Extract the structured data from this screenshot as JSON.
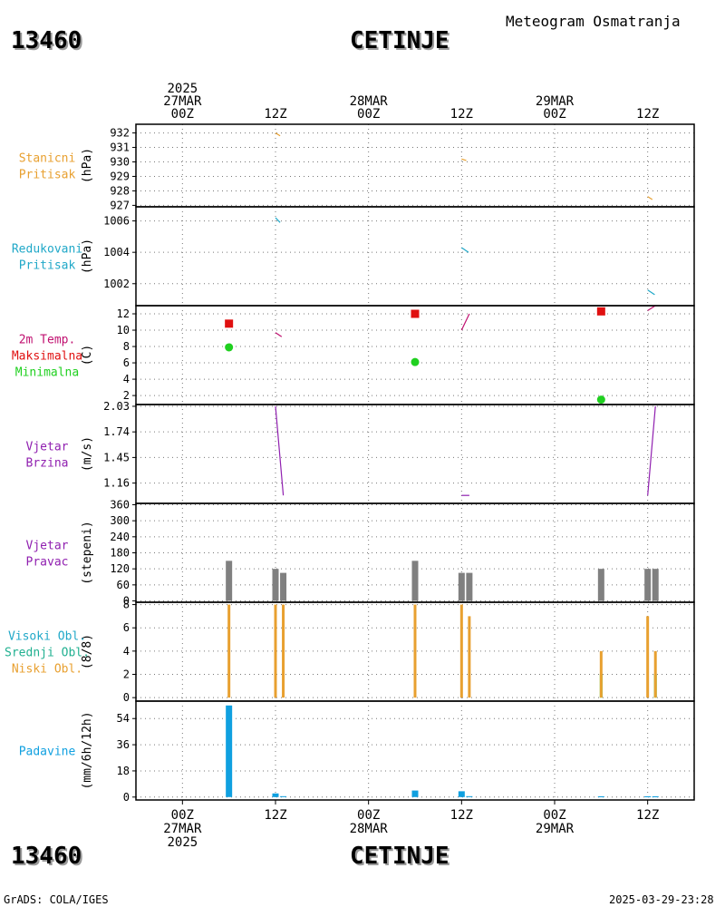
{
  "header": {
    "station_id": "13460",
    "station_name": "CETINJE",
    "title": "Meteogram Osmatranja"
  },
  "footer": {
    "station_id": "13460",
    "station_name": "CETINJE",
    "credit": "GrADS: COLA/IGES",
    "timestamp": "2025-03-29-23:28"
  },
  "colors": {
    "orange": "#e8a030",
    "cyan": "#20a8c8",
    "red": "#e01010",
    "green": "#20d020",
    "magenta": "#c01070",
    "purple": "#9020b0",
    "gray": "#808080",
    "blue": "#10a0e0"
  },
  "chart_data": {
    "type": "meteogram",
    "time_axis": {
      "hour_range": [
        -6,
        66
      ],
      "top_labels": [
        {
          "hour": 0,
          "lines": [
            "2025",
            "27MAR",
            "00Z"
          ]
        },
        {
          "hour": 12,
          "lines": [
            "12Z"
          ]
        },
        {
          "hour": 24,
          "lines": [
            "28MAR",
            "00Z"
          ]
        },
        {
          "hour": 36,
          "lines": [
            "12Z"
          ]
        },
        {
          "hour": 48,
          "lines": [
            "29MAR",
            "00Z"
          ]
        },
        {
          "hour": 60,
          "lines": [
            "12Z"
          ]
        }
      ],
      "bottom_labels": [
        {
          "hour": 0,
          "lines": [
            "00Z",
            "27MAR",
            "2025"
          ]
        },
        {
          "hour": 12,
          "lines": [
            "12Z"
          ]
        },
        {
          "hour": 24,
          "lines": [
            "00Z",
            "28MAR"
          ]
        },
        {
          "hour": 36,
          "lines": [
            "12Z"
          ]
        },
        {
          "hour": 48,
          "lines": [
            "00Z",
            "29MAR"
          ]
        },
        {
          "hour": 60,
          "lines": [
            "12Z"
          ]
        }
      ]
    },
    "panels": [
      {
        "id": "stanicni",
        "labels": [
          {
            "text": "Stanicni",
            "color": "#e8a030"
          },
          {
            "text": "Pritisak",
            "color": "#e8a030"
          }
        ],
        "unit": "(hPa)",
        "ylim": [
          926.9,
          932.6
        ],
        "ticks": [
          932,
          931,
          930,
          929,
          928,
          927
        ],
        "lines": [
          {
            "color": "#e8a030",
            "points": [
              [
                12,
                932.0
              ],
              [
                12.6,
                931.8
              ]
            ]
          },
          {
            "color": "#e8a030",
            "points": [
              [
                36,
                930.2
              ],
              [
                36.6,
                930.1
              ]
            ]
          },
          {
            "color": "#e8a030",
            "points": [
              [
                60,
                927.6
              ],
              [
                60.6,
                927.4
              ]
            ]
          }
        ]
      },
      {
        "id": "redukovani",
        "labels": [
          {
            "text": "Redukovani",
            "color": "#20a8c8"
          },
          {
            "text": "Pritisak",
            "color": "#20a8c8"
          }
        ],
        "unit": "(hPa)",
        "ylim": [
          1000.6,
          1006.9
        ],
        "ticks": [
          1006,
          1004,
          1002
        ],
        "lines": [
          {
            "color": "#20a8c8",
            "points": [
              [
                12,
                1006.2
              ],
              [
                12.6,
                1005.9
              ]
            ]
          },
          {
            "color": "#20a8c8",
            "points": [
              [
                36,
                1004.3
              ],
              [
                36.9,
                1004.0
              ]
            ]
          },
          {
            "color": "#20a8c8",
            "points": [
              [
                60,
                1001.6
              ],
              [
                60.9,
                1001.3
              ]
            ]
          }
        ]
      },
      {
        "id": "temperatura",
        "labels": [
          {
            "text": "2m Temp.",
            "color": "#c01070"
          },
          {
            "text": "Maksimalna",
            "color": "#e01010"
          },
          {
            "text": "Minimalna",
            "color": "#20d020"
          }
        ],
        "unit": "(C)",
        "ylim": [
          0.9,
          13.0
        ],
        "ticks": [
          12,
          10,
          8,
          6,
          4,
          2
        ],
        "lines": [
          {
            "color": "#c01070",
            "points": [
              [
                12,
                9.7
              ],
              [
                12.8,
                9.2
              ]
            ]
          },
          {
            "color": "#c01070",
            "points": [
              [
                36,
                10.0
              ],
              [
                37.0,
                12.0
              ]
            ]
          },
          {
            "color": "#c01070",
            "points": [
              [
                60,
                12.4
              ],
              [
                61.0,
                13.0
              ]
            ]
          }
        ],
        "max_points": [
          [
            6,
            10.8
          ],
          [
            30,
            12.0
          ],
          [
            54,
            12.3
          ]
        ],
        "min_points": [
          [
            6,
            7.9
          ],
          [
            30,
            6.1
          ],
          [
            54,
            1.5
          ]
        ]
      },
      {
        "id": "vjetar_brzina",
        "labels": [
          {
            "text": "Vjetar",
            "color": "#9020b0"
          },
          {
            "text": "Brzina",
            "color": "#9020b0"
          }
        ],
        "unit": "(m/s)",
        "ylim": [
          0.93,
          2.05
        ],
        "ticks": [
          "2.03",
          "1.74",
          "1.45",
          "1.16"
        ],
        "lines": [
          {
            "color": "#9020b0",
            "points": [
              [
                12,
                2.03
              ],
              [
                13.0,
                1.02
              ]
            ]
          },
          {
            "color": "#9020b0",
            "points": [
              [
                36,
                1.02
              ],
              [
                37.0,
                1.02
              ]
            ]
          },
          {
            "color": "#9020b0",
            "points": [
              [
                60,
                1.02
              ],
              [
                61.0,
                2.03
              ]
            ]
          }
        ]
      },
      {
        "id": "vjetar_pravac",
        "labels": [
          {
            "text": "Vjetar",
            "color": "#9020b0"
          },
          {
            "text": "Pravac",
            "color": "#9020b0"
          }
        ],
        "unit": "(stepeni)",
        "ylim": [
          -5,
          365
        ],
        "ticks": [
          360,
          300,
          240,
          180,
          120,
          60,
          0
        ],
        "bars": [
          {
            "color": "#808080",
            "hour": 6,
            "value": 150
          },
          {
            "color": "#808080",
            "hour": 12,
            "value": 120
          },
          {
            "color": "#808080",
            "hour": 13,
            "value": 105
          },
          {
            "color": "#808080",
            "hour": 30,
            "value": 150
          },
          {
            "color": "#808080",
            "hour": 36,
            "value": 105
          },
          {
            "color": "#808080",
            "hour": 37,
            "value": 105
          },
          {
            "color": "#808080",
            "hour": 54,
            "value": 120
          },
          {
            "color": "#808080",
            "hour": 60,
            "value": 120
          },
          {
            "color": "#808080",
            "hour": 61,
            "value": 120
          }
        ]
      },
      {
        "id": "oblacnost",
        "labels": [
          {
            "text": "Visoki Obl.",
            "color": "#20a8c8"
          },
          {
            "text": "Srednji Obl.",
            "color": "#20b090"
          },
          {
            "text": "Niski Obl.",
            "color": "#e8a030"
          }
        ],
        "unit": "(8/8)",
        "ylim": [
          -0.3,
          8.2
        ],
        "ticks": [
          8,
          6,
          4,
          2,
          0
        ],
        "bars": [
          {
            "color": "#e8a030",
            "hour": 6,
            "value": 8
          },
          {
            "color": "#e8a030",
            "hour": 12,
            "value": 8
          },
          {
            "color": "#e8a030",
            "hour": 13,
            "value": 8
          },
          {
            "color": "#e8a030",
            "hour": 30,
            "value": 8
          },
          {
            "color": "#e8a030",
            "hour": 36,
            "value": 8
          },
          {
            "color": "#e8a030",
            "hour": 37,
            "value": 7
          },
          {
            "color": "#20d020",
            "hour": 54,
            "value": 2
          },
          {
            "color": "#e8a030",
            "hour": 54,
            "value": 4
          },
          {
            "color": "#e8a030",
            "hour": 60,
            "value": 7
          },
          {
            "color": "#20d020",
            "hour": 61,
            "value": 2
          },
          {
            "color": "#e8a030",
            "hour": 61,
            "value": 4
          }
        ]
      },
      {
        "id": "padavine",
        "labels": [
          {
            "text": "Padavine",
            "color": "#10a0e0"
          }
        ],
        "unit": "(mm/6h/12h)",
        "ylim": [
          -2,
          66
        ],
        "ticks": [
          54,
          36,
          18,
          0
        ],
        "bars": [
          {
            "color": "#10a0e0",
            "hour": 6,
            "value": 63
          },
          {
            "color": "#10a0e0",
            "hour": 12,
            "value": 2.5
          },
          {
            "color": "#10a0e0",
            "hour": 13,
            "value": 0.6
          },
          {
            "color": "#10a0e0",
            "hour": 30,
            "value": 4.5
          },
          {
            "color": "#10a0e0",
            "hour": 36,
            "value": 4
          },
          {
            "color": "#10a0e0",
            "hour": 37,
            "value": 0.6
          },
          {
            "color": "#10a0e0",
            "hour": 54,
            "value": 0.5
          },
          {
            "color": "#10a0e0",
            "hour": 60,
            "value": 0.5
          },
          {
            "color": "#10a0e0",
            "hour": 61,
            "value": 0.5
          }
        ]
      }
    ]
  }
}
